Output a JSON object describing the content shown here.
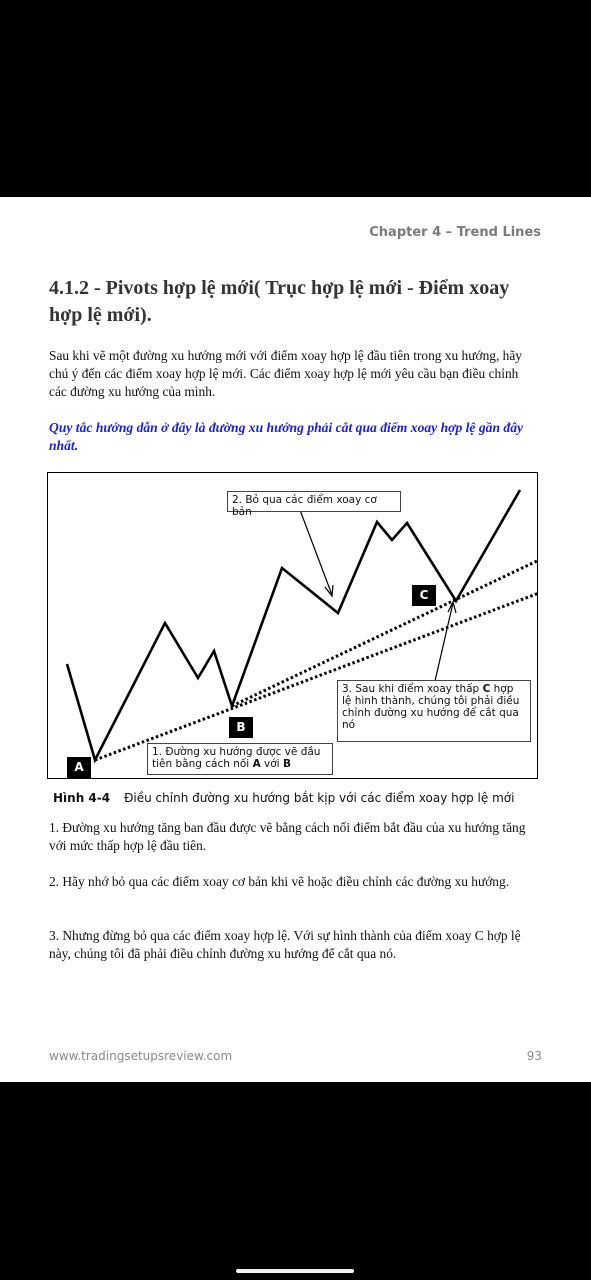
{
  "header": {
    "chapter": "Chapter 4 – Trend Lines"
  },
  "section": {
    "title": "4.1.2 - Pivots hợp lệ mới( Trục hợp lệ mới - Điểm xoay hợp lệ mới)."
  },
  "intro": "Sau khi vẽ một đường xu hướng mới với điểm xoay hợp lệ đầu tiên trong xu hướng, hãy chú ý đến các điểm xoay hợp lệ mới. Các điểm xoay hợp lệ mới yêu cầu bạn điều chỉnh các đường xu hướng của mình.",
  "rule": "Quy tắc hướng dẫn ở đây là đường xu hướng phải cắt qua điểm xoay hợp lệ gần đây nhất.",
  "figure": {
    "note1_pre": "1. Đường xu hướng được vẽ đầu tiên bằng cách nối ",
    "note1_a": "A",
    "note1_mid": " với ",
    "note1_b": "B",
    "note2": "2. Bỏ qua các điểm xoay cơ bản",
    "note3_pre": "3. Sau khi điểm xoay thấp ",
    "note3_c": "C",
    "note3_post": " hợp lệ hình thành, chúng tôi phải điều chỉnh đường xu hướng để cắt qua nó",
    "label_a": "A",
    "label_b": "B",
    "label_c": "C",
    "caption_num": "Hình 4-4",
    "caption_text": "Điều chỉnh đường xu hướng bắt kịp với các điểm xoay hợp lệ mới"
  },
  "points": [
    "1. Đường xu hướng tăng ban đầu được vẽ bằng cách nối điểm bắt đầu của xu hướng tăng với mức thấp hợp lệ đầu tiên.",
    "2. Hãy nhớ bỏ qua các điểm xoay cơ bản khi vẽ hoặc điều chỉnh các đường xu hướng.",
    "3. Nhưng đừng bỏ qua các điểm xoay hợp lệ. Với sự hình thành của điểm xoay C hợp lệ này, chúng tôi đã phải điều chỉnh đường xu hướng để cắt qua nó."
  ],
  "footer": {
    "website": "www.tradingsetupsreview.com",
    "page_number": "93"
  }
}
